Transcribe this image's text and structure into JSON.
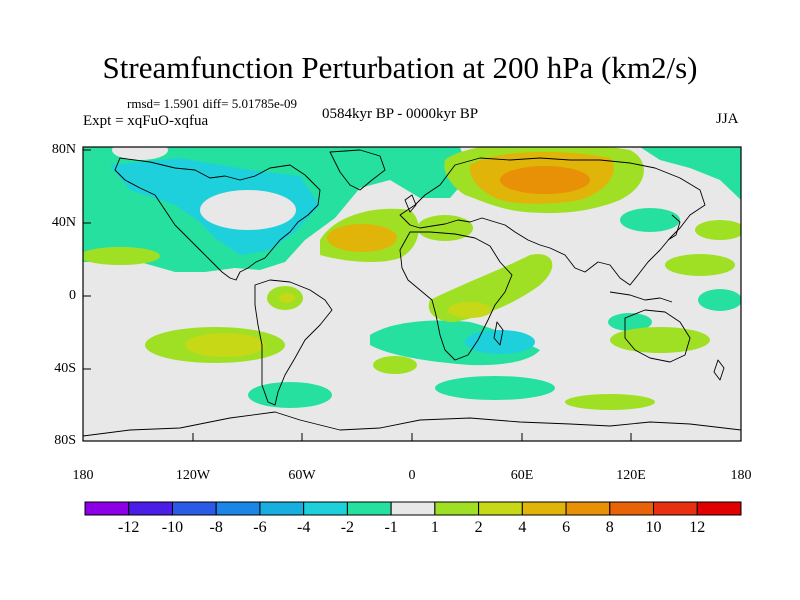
{
  "title": "Streamfunction Perturbation at 200 hPa (km2/s)",
  "stats": "rmsd= 1.5901 diff= 5.01785e-09",
  "period": "0584kyr BP - 0000kyr BP",
  "expt": "Expt = xqFuO-xqfua",
  "season": "JJA",
  "lat_labels": [
    "80N",
    "40N",
    "0",
    "40S",
    "80S"
  ],
  "lon_labels": [
    "180",
    "120W",
    "60W",
    "0",
    "60E",
    "120E",
    "180"
  ],
  "colorbar": {
    "labels": [
      "-12",
      "-10",
      "-8",
      "-6",
      "-4",
      "-2",
      "-1",
      "1",
      "2",
      "4",
      "6",
      "8",
      "10",
      "12"
    ],
    "colors": [
      "#8c00e6",
      "#4a1ee6",
      "#2a5ae6",
      "#1a86e6",
      "#18aee0",
      "#1ed0dc",
      "#26e0a0",
      "#e8e8e8",
      "#a0e024",
      "#c6d816",
      "#e0b408",
      "#e89006",
      "#e86208",
      "#e83010",
      "#e00000"
    ]
  }
}
